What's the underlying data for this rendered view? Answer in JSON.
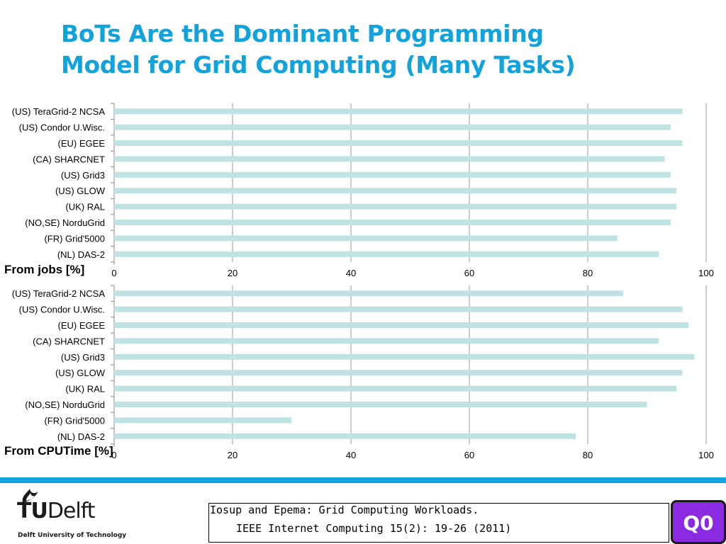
{
  "slide": {
    "title_line1": "BoTs Are the Dominant Programming",
    "title_line2": "Model for Grid Computing (Many Tasks)"
  },
  "chart_data": [
    {
      "type": "bar",
      "orientation": "horizontal",
      "title": "From jobs [%]",
      "categories": [
        "(US) TeraGrid-2 NCSA",
        "(US) Condor U.Wisc.",
        "(EU) EGEE",
        "(CA) SHARCNET",
        "(US) Grid3",
        "(US) GLOW",
        "(UK) RAL",
        "(NO,SE) NorduGrid",
        "(FR) Grid'5000",
        "(NL) DAS-2"
      ],
      "values": [
        96,
        94,
        96,
        93,
        94,
        95,
        95,
        94,
        85,
        92
      ],
      "xlim": [
        0,
        100
      ],
      "xticks": [
        0,
        20,
        40,
        60,
        80,
        100
      ],
      "grid": "vertical",
      "bar_color": "#bfe2e2"
    },
    {
      "type": "bar",
      "orientation": "horizontal",
      "title": "From CPUTime [%]",
      "categories": [
        "(US) TeraGrid-2 NCSA",
        "(US) Condor U.Wisc.",
        "(EU) EGEE",
        "(CA) SHARCNET",
        "(US) Grid3",
        "(US) GLOW",
        "(UK) RAL",
        "(NO,SE) NorduGrid",
        "(FR) Grid'5000",
        "(NL) DAS-2"
      ],
      "values": [
        86,
        96,
        97,
        92,
        98,
        96,
        95,
        90,
        30,
        78
      ],
      "xlim": [
        0,
        100
      ],
      "xticks": [
        0,
        20,
        40,
        60,
        80,
        100
      ],
      "grid": "vertical",
      "bar_color": "#bfe2e2"
    }
  ],
  "footer": {
    "logo_tu": "TU",
    "logo_delft": "Delft",
    "logo_sub": "Delft University of Technology",
    "citation_line1": "Iosup and Epema: Grid Computing Workloads.",
    "citation_line2": "IEEE Internet Computing 15(2): 19-26 (2011)",
    "badge": "Q0",
    "badge_color": "#8a2be2",
    "accent_color": "#13a3dc"
  }
}
